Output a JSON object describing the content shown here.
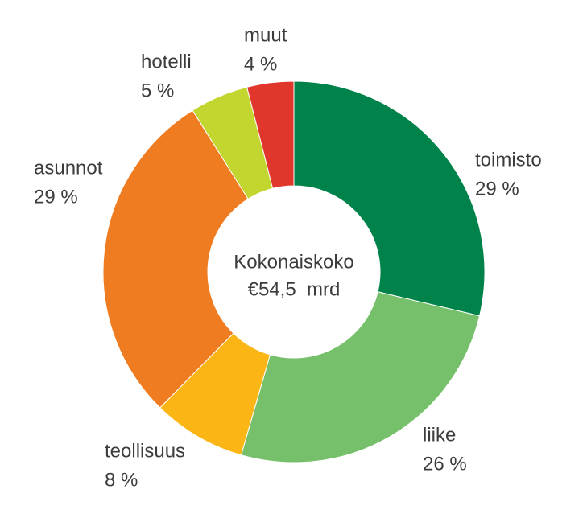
{
  "chart_data": {
    "type": "donut",
    "categories": [
      "toimisto",
      "liike",
      "teollisuus",
      "asunnot",
      "hotelli",
      "muut"
    ],
    "values": [
      29,
      26,
      8,
      29,
      5,
      4
    ],
    "value_labels": [
      "29 %",
      "26 %",
      "8 %",
      "29 %",
      "5 %",
      "4 %"
    ],
    "colors": [
      "#00834a",
      "#77c06b",
      "#fbb616",
      "#f07c22",
      "#c3d62f",
      "#e0362c"
    ],
    "center_label": [
      "Kokonaiskoko",
      "€54,5  mrd"
    ]
  }
}
